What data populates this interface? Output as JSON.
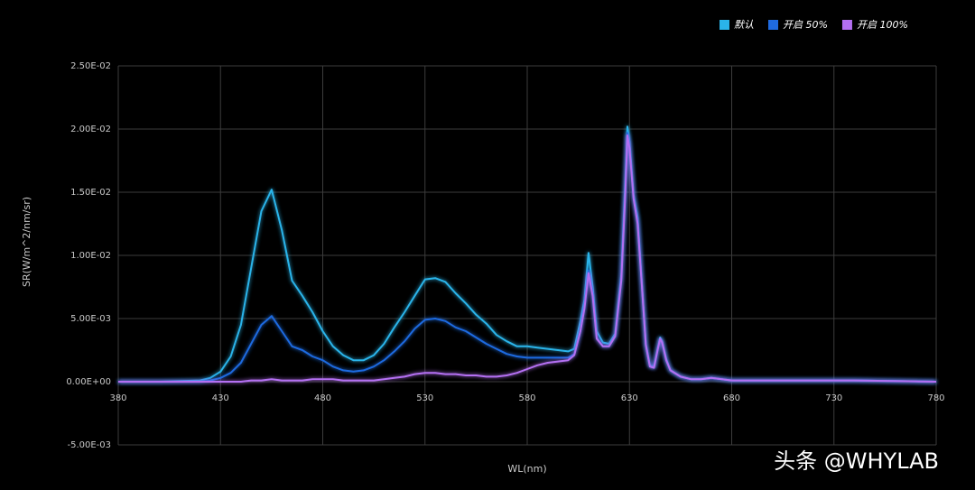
{
  "chart_data": {
    "type": "line",
    "xlabel": "WL(nm)",
    "ylabel": "SR(W/m^2/nm/sr)",
    "watermark": "头条 @WHYLAB",
    "legend": "top-right",
    "grid": true,
    "x": [
      380,
      400,
      420,
      425,
      430,
      435,
      440,
      445,
      450,
      455,
      460,
      465,
      470,
      475,
      480,
      485,
      490,
      495,
      500,
      505,
      510,
      515,
      520,
      525,
      530,
      535,
      540,
      545,
      550,
      555,
      560,
      565,
      570,
      575,
      580,
      585,
      590,
      595,
      600,
      603,
      606,
      608,
      610,
      612,
      614,
      617,
      620,
      623,
      626,
      628,
      629,
      630,
      632,
      634,
      636,
      638,
      640,
      642,
      644,
      645,
      646,
      648,
      650,
      655,
      660,
      665,
      670,
      680,
      700,
      740,
      780
    ],
    "series": [
      {
        "name": "默认",
        "color": "#2ab4ea",
        "values": [
          0,
          0,
          0.0001,
          0.0003,
          0.0008,
          0.002,
          0.0045,
          0.009,
          0.0135,
          0.0152,
          0.012,
          0.008,
          0.0068,
          0.0055,
          0.004,
          0.0028,
          0.0021,
          0.0017,
          0.0017,
          0.0021,
          0.003,
          0.0043,
          0.0055,
          0.0068,
          0.0081,
          0.0082,
          0.0079,
          0.007,
          0.0062,
          0.0053,
          0.0046,
          0.0037,
          0.0032,
          0.0028,
          0.0028,
          0.0027,
          0.0026,
          0.0025,
          0.0024,
          0.0026,
          0.0048,
          0.0065,
          0.0102,
          0.0075,
          0.004,
          0.0031,
          0.003,
          0.0038,
          0.0085,
          0.016,
          0.0202,
          0.019,
          0.0148,
          0.013,
          0.008,
          0.003,
          0.0013,
          0.0012,
          0.0028,
          0.0035,
          0.0032,
          0.0018,
          0.0009,
          0.0004,
          0.0002,
          0.0002,
          0.0003,
          0.0001,
          0.0001,
          0.0001,
          0
        ]
      },
      {
        "name": "开启 50%",
        "color": "#1f6be0",
        "values": [
          0,
          0,
          0,
          0.0001,
          0.0003,
          0.0007,
          0.0015,
          0.003,
          0.0045,
          0.0052,
          0.004,
          0.0028,
          0.0025,
          0.002,
          0.0017,
          0.0012,
          0.0009,
          0.0008,
          0.0009,
          0.0012,
          0.0017,
          0.0024,
          0.0032,
          0.0042,
          0.0049,
          0.005,
          0.0048,
          0.0043,
          0.004,
          0.0035,
          0.003,
          0.0026,
          0.0022,
          0.002,
          0.0019,
          0.0019,
          0.0019,
          0.0019,
          0.0019,
          0.0022,
          0.004,
          0.006,
          0.0088,
          0.007,
          0.0035,
          0.0028,
          0.0028,
          0.0036,
          0.0082,
          0.0152,
          0.0197,
          0.0187,
          0.0146,
          0.0127,
          0.0079,
          0.0029,
          0.0012,
          0.0011,
          0.0027,
          0.0034,
          0.0031,
          0.0017,
          0.0009,
          0.0004,
          0.0002,
          0.0002,
          0.0003,
          0.0001,
          0.0001,
          0.0001,
          0
        ]
      },
      {
        "name": "开启 100%",
        "color": "#b46ff2",
        "values": [
          0,
          0,
          0,
          0,
          0,
          0,
          0,
          0.0001,
          0.0001,
          0.0002,
          0.0001,
          0.0001,
          0.0001,
          0.0002,
          0.0002,
          0.0002,
          0.0001,
          0.0001,
          0.0001,
          0.0001,
          0.0002,
          0.0003,
          0.0004,
          0.0006,
          0.0007,
          0.0007,
          0.0006,
          0.0006,
          0.0005,
          0.0005,
          0.0004,
          0.0004,
          0.0005,
          0.0007,
          0.001,
          0.0013,
          0.0015,
          0.0016,
          0.0017,
          0.0021,
          0.004,
          0.0058,
          0.0086,
          0.0068,
          0.0034,
          0.0028,
          0.0028,
          0.0036,
          0.008,
          0.015,
          0.0195,
          0.0185,
          0.0145,
          0.0125,
          0.0078,
          0.0029,
          0.0012,
          0.0011,
          0.0027,
          0.0034,
          0.0031,
          0.0017,
          0.0009,
          0.0004,
          0.0002,
          0.0002,
          0.0003,
          0.0001,
          0.0001,
          0.0001,
          0
        ]
      }
    ],
    "xlim": [
      380,
      780
    ],
    "xticks": [
      380,
      430,
      480,
      530,
      580,
      630,
      680,
      730,
      780
    ],
    "ylim": [
      -0.005,
      0.025
    ],
    "yticks": [
      {
        "value": -0.005,
        "label": "-5.00E-03"
      },
      {
        "value": 0,
        "label": "0.00E+00"
      },
      {
        "value": 0.005,
        "label": "5.00E-03"
      },
      {
        "value": 0.01,
        "label": "1.00E-02"
      },
      {
        "value": 0.015,
        "label": "1.50E-02"
      },
      {
        "value": 0.02,
        "label": "2.00E-02"
      },
      {
        "value": 0.025,
        "label": "2.50E-02"
      }
    ]
  }
}
